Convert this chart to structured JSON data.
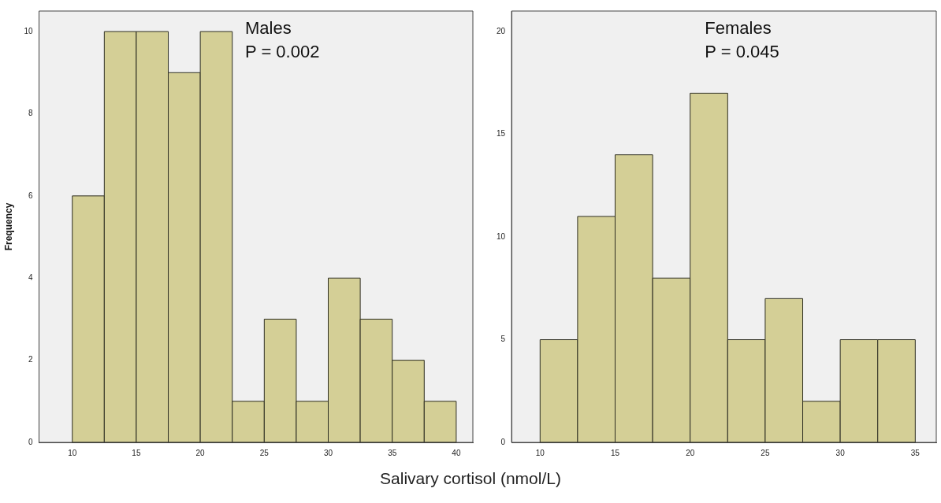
{
  "chart_data": [
    {
      "type": "histogram",
      "ylabel": "Frequency",
      "xlabel": "Salivary cortisol (nmol/L)",
      "annotations": [
        "Males",
        "P = 0.002"
      ],
      "color": "#d4cf96",
      "bins": [
        10,
        12.5,
        15,
        17.5,
        20,
        22.5,
        25,
        27.5,
        30,
        32.5,
        35,
        37.5,
        40
      ],
      "values": [
        6,
        10,
        10,
        9,
        10,
        1,
        3,
        1,
        4,
        3,
        2,
        1
      ],
      "xlim": [
        7.4,
        41.3
      ],
      "xticks": [
        10,
        15,
        20,
        25,
        30,
        35,
        40
      ],
      "ylim": [
        0,
        10.5
      ],
      "yticks": [
        0,
        2,
        4,
        6,
        8,
        10
      ],
      "grid": false,
      "legend": false
    },
    {
      "type": "histogram",
      "annotations": [
        "Females",
        "P = 0.045"
      ],
      "color": "#d4cf96",
      "bins": [
        10,
        12.5,
        15,
        17.5,
        20,
        22.5,
        25,
        27.5,
        30,
        32.5,
        35
      ],
      "values": [
        5,
        11,
        14,
        8,
        17,
        5,
        7,
        2,
        5,
        5
      ],
      "xlim": [
        8.1,
        36.4
      ],
      "xticks": [
        10,
        15,
        20,
        25,
        30,
        35
      ],
      "ylim": [
        0,
        21
      ],
      "yticks": [
        0,
        5,
        10,
        15,
        20
      ],
      "grid": false,
      "legend": false
    }
  ]
}
